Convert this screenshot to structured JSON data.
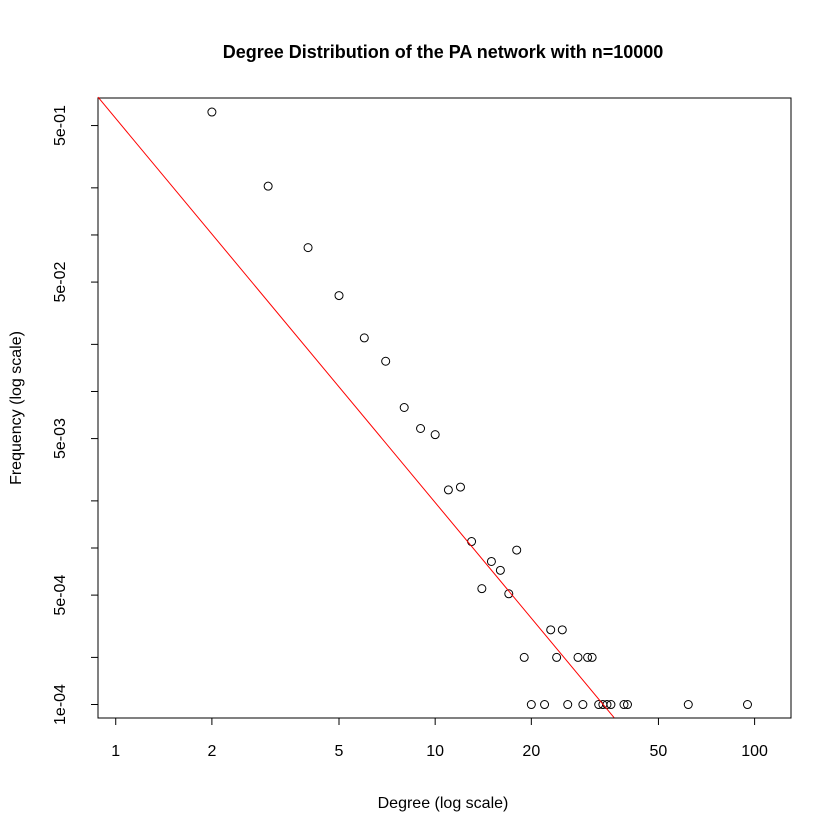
{
  "chart_data": {
    "type": "scatter",
    "title": "Degree Distribution of the PA network with n=10000",
    "xlabel": "Degree (log scale)",
    "ylabel": "Frequency (log scale)",
    "x_scale": "log",
    "y_scale": "log",
    "xlim": [
      0.88,
      130
    ],
    "ylim": [
      8.2e-05,
      0.75
    ],
    "x_ticks": [
      {
        "value": 1,
        "label": "1"
      },
      {
        "value": 2,
        "label": "2"
      },
      {
        "value": 5,
        "label": "5"
      },
      {
        "value": 10,
        "label": "10"
      },
      {
        "value": 20,
        "label": "20"
      },
      {
        "value": 50,
        "label": "50"
      },
      {
        "value": 100,
        "label": "100"
      }
    ],
    "y_ticks": [
      {
        "value": 0.0001,
        "label": "1e-04"
      },
      {
        "value": 0.0002,
        "label": ""
      },
      {
        "value": 0.0005,
        "label": "5e-04"
      },
      {
        "value": 0.001,
        "label": ""
      },
      {
        "value": 0.002,
        "label": ""
      },
      {
        "value": 0.005,
        "label": "5e-03"
      },
      {
        "value": 0.01,
        "label": ""
      },
      {
        "value": 0.02,
        "label": ""
      },
      {
        "value": 0.05,
        "label": "5e-02"
      },
      {
        "value": 0.1,
        "label": ""
      },
      {
        "value": 0.2,
        "label": ""
      },
      {
        "value": 0.5,
        "label": "5e-01"
      }
    ],
    "grid": false,
    "series": [
      {
        "marker": "open-circle",
        "color": "#000000",
        "points": [
          [
            2,
            0.61
          ],
          [
            3,
            0.205
          ],
          [
            4,
            0.083
          ],
          [
            5,
            0.041
          ],
          [
            6,
            0.022
          ],
          [
            7,
            0.0156
          ],
          [
            8,
            0.0079
          ],
          [
            9,
            0.0058
          ],
          [
            10,
            0.0053
          ],
          [
            11,
            0.00235
          ],
          [
            12,
            0.00245
          ],
          [
            13,
            0.0011
          ],
          [
            14,
            0.00055
          ],
          [
            15,
            0.00082
          ],
          [
            16,
            0.00072
          ],
          [
            17,
            0.00051
          ],
          [
            18,
            0.00097
          ],
          [
            19,
            0.0002
          ],
          [
            20,
            0.0001
          ],
          [
            22,
            0.0001
          ],
          [
            23,
            0.0003
          ],
          [
            24,
            0.0002
          ],
          [
            25,
            0.0003
          ],
          [
            26,
            0.0001
          ],
          [
            28,
            0.0002
          ],
          [
            29,
            0.0001
          ],
          [
            30,
            0.0002
          ],
          [
            31,
            0.0002
          ],
          [
            32.5,
            0.0001
          ],
          [
            33.5,
            0.0001
          ],
          [
            34.5,
            0.0001
          ],
          [
            35.5,
            0.0001
          ],
          [
            39,
            0.0001
          ],
          [
            40,
            0.0001
          ],
          [
            62,
            0.0001
          ],
          [
            95,
            0.0001
          ]
        ]
      }
    ],
    "reference_line": {
      "color": "#ff0000",
      "from": [
        0.88,
        0.76
      ],
      "to": [
        36.3,
        8.25e-05
      ]
    }
  }
}
